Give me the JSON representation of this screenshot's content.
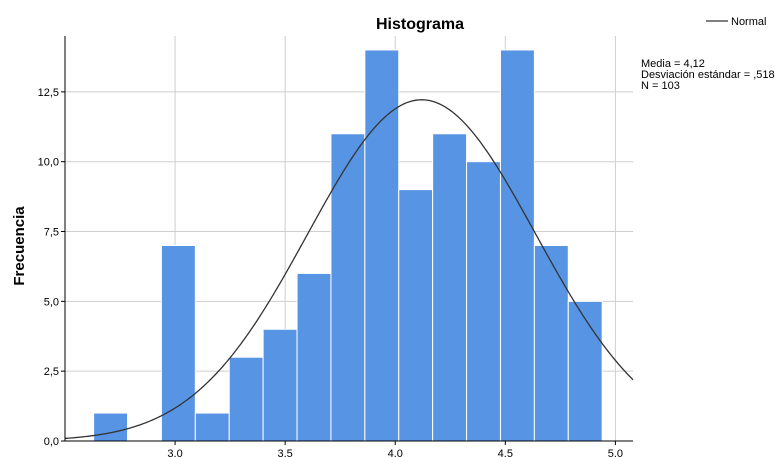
{
  "chart_data": {
    "type": "bar",
    "title": "Histograma",
    "ylabel": "Frecuencia",
    "xlabel": "",
    "xlim": [
      2.5,
      5.08
    ],
    "ylim": [
      0,
      14.5
    ],
    "x_ticks": [
      {
        "value": 3.0,
        "label": "3.0"
      },
      {
        "value": 3.5,
        "label": "3.5"
      },
      {
        "value": 4.0,
        "label": "4.0"
      },
      {
        "value": 4.5,
        "label": "4.5"
      },
      {
        "value": 5.0,
        "label": "5.0"
      }
    ],
    "y_ticks": [
      {
        "value": 0,
        "label": "0,0"
      },
      {
        "value": 2.5,
        "label": "2,5"
      },
      {
        "value": 5,
        "label": "5,0"
      },
      {
        "value": 7.5,
        "label": "7,5"
      },
      {
        "value": 10,
        "label": "10,0"
      },
      {
        "value": 12.5,
        "label": "12,5"
      }
    ],
    "bin_width": 0.154,
    "bins": [
      {
        "start": 2.63,
        "count": 1
      },
      {
        "start": 2.938,
        "count": 7
      },
      {
        "start": 3.092,
        "count": 1
      },
      {
        "start": 3.246,
        "count": 3
      },
      {
        "start": 3.4,
        "count": 4
      },
      {
        "start": 3.554,
        "count": 6
      },
      {
        "start": 3.708,
        "count": 11
      },
      {
        "start": 3.862,
        "count": 14
      },
      {
        "start": 4.016,
        "count": 9
      },
      {
        "start": 4.17,
        "count": 11
      },
      {
        "start": 4.324,
        "count": 10
      },
      {
        "start": 4.478,
        "count": 14
      },
      {
        "start": 4.632,
        "count": 7
      },
      {
        "start": 4.786,
        "count": 5
      }
    ],
    "normal_curve": {
      "mean": 4.12,
      "sd": 0.518,
      "n": 103
    },
    "grid": true,
    "legend": {
      "position": "top-right",
      "entries": [
        "Normal"
      ]
    },
    "stats_lines": [
      "Media = 4,12",
      "Desviación estándar = ,518",
      "N = 103"
    ],
    "colors": {
      "bar": "#5894e4",
      "bar_edge": "#ffffff",
      "curve": "#333333",
      "grid": "#cfcfcf"
    }
  }
}
